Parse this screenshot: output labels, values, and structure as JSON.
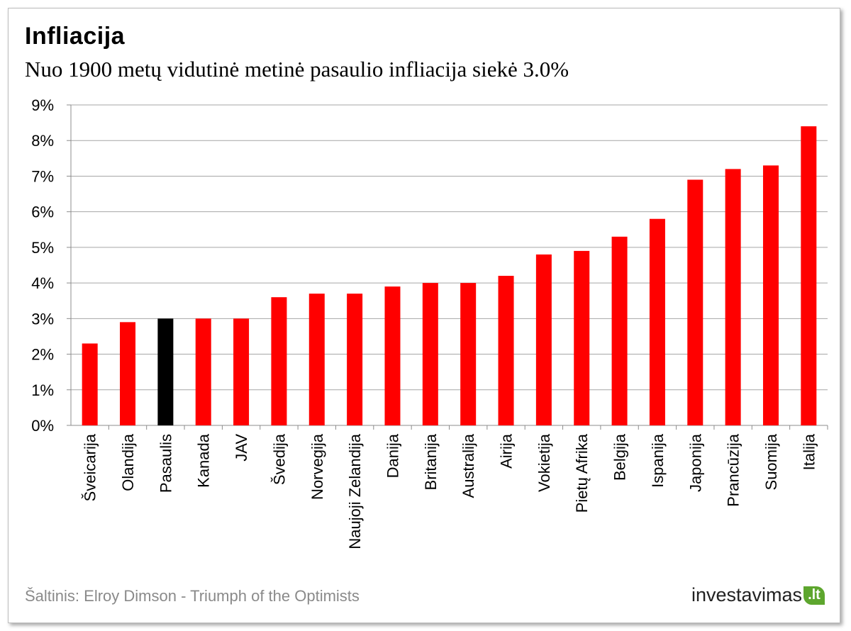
{
  "title": "Infliacija",
  "subtitle": "Nuo 1900 metų vidutinė metinė pasaulio  infliacija  siekė 3.0%",
  "source": "Šaltinis: Elroy Dimson - Triumph  of the Optimists",
  "logo": {
    "text": "investavimas",
    "suffix": ".lt",
    "accent": "#5da62e"
  },
  "chart_data": {
    "type": "bar",
    "title": "Infliacija",
    "subtitle": "Nuo 1900 metų vidutinė metinė pasaulio  infliacija  siekė 3.0%",
    "xlabel": "",
    "ylabel": "",
    "ylim": [
      0,
      9
    ],
    "y_ticks": [
      "0%",
      "1%",
      "2%",
      "3%",
      "4%",
      "5%",
      "6%",
      "7%",
      "8%",
      "9%"
    ],
    "grid": true,
    "legend": "none",
    "bar_color": "#ff0000",
    "highlight_color": "#000000",
    "highlight_category": "Pasaulis",
    "categories": [
      "Šveicarija",
      "Olandija",
      "Pasaulis",
      "Kanada",
      "JAV",
      "Švedija",
      "Norvegija",
      "Naujoji Zelandija",
      "Danija",
      "Britanija",
      "Australija",
      "Airija",
      "Vokietija",
      "Pietų Afrika",
      "Belgija",
      "Ispanija",
      "Japonija",
      "Prancūzija",
      "Suomija",
      "Italija"
    ],
    "values": [
      2.3,
      2.9,
      3.0,
      3.0,
      3.0,
      3.6,
      3.7,
      3.7,
      3.9,
      4.0,
      4.0,
      4.2,
      4.8,
      4.9,
      5.3,
      5.8,
      6.9,
      7.2,
      7.3,
      8.4
    ]
  }
}
